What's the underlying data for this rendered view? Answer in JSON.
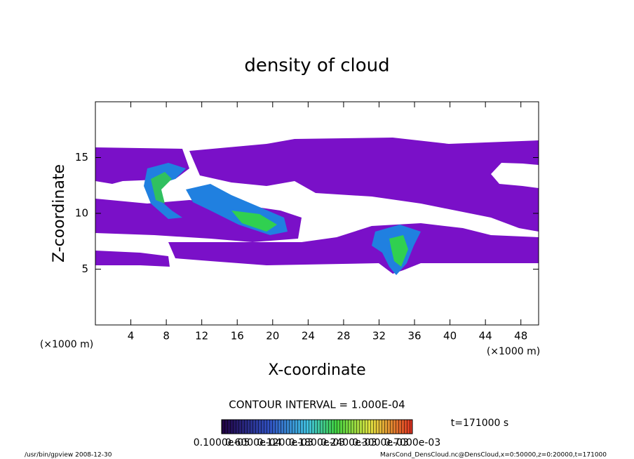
{
  "chart_data": {
    "type": "contour",
    "title": "density of cloud",
    "x_label": "X-coordinate",
    "y_label": "Z-coordinate",
    "x_unit": "(×1000 m)",
    "xlim": [
      0,
      50
    ],
    "xticks": [
      4,
      8,
      12,
      16,
      20,
      24,
      28,
      32,
      36,
      40,
      44,
      48
    ],
    "ylim": [
      0,
      20
    ],
    "yticks": [
      5,
      10,
      15
    ],
    "contour_interval_text": "CONTOUR INTERVAL = 1.000E-04",
    "time_text": "t=171000 s",
    "colorbar_labels": [
      "0.1000e-05",
      "0.6000e-04",
      "0.1200e-03",
      "0.1800e-03",
      "0.2400e-03",
      "0.3000e-03",
      "0.7000e-03"
    ],
    "footer_left": "/usr/bin/gpview   2008-12-30",
    "footer_right": "MarsCond_DensCloud.nc@DensCloud,x=0:50000,z=0:20000,t=171000"
  }
}
